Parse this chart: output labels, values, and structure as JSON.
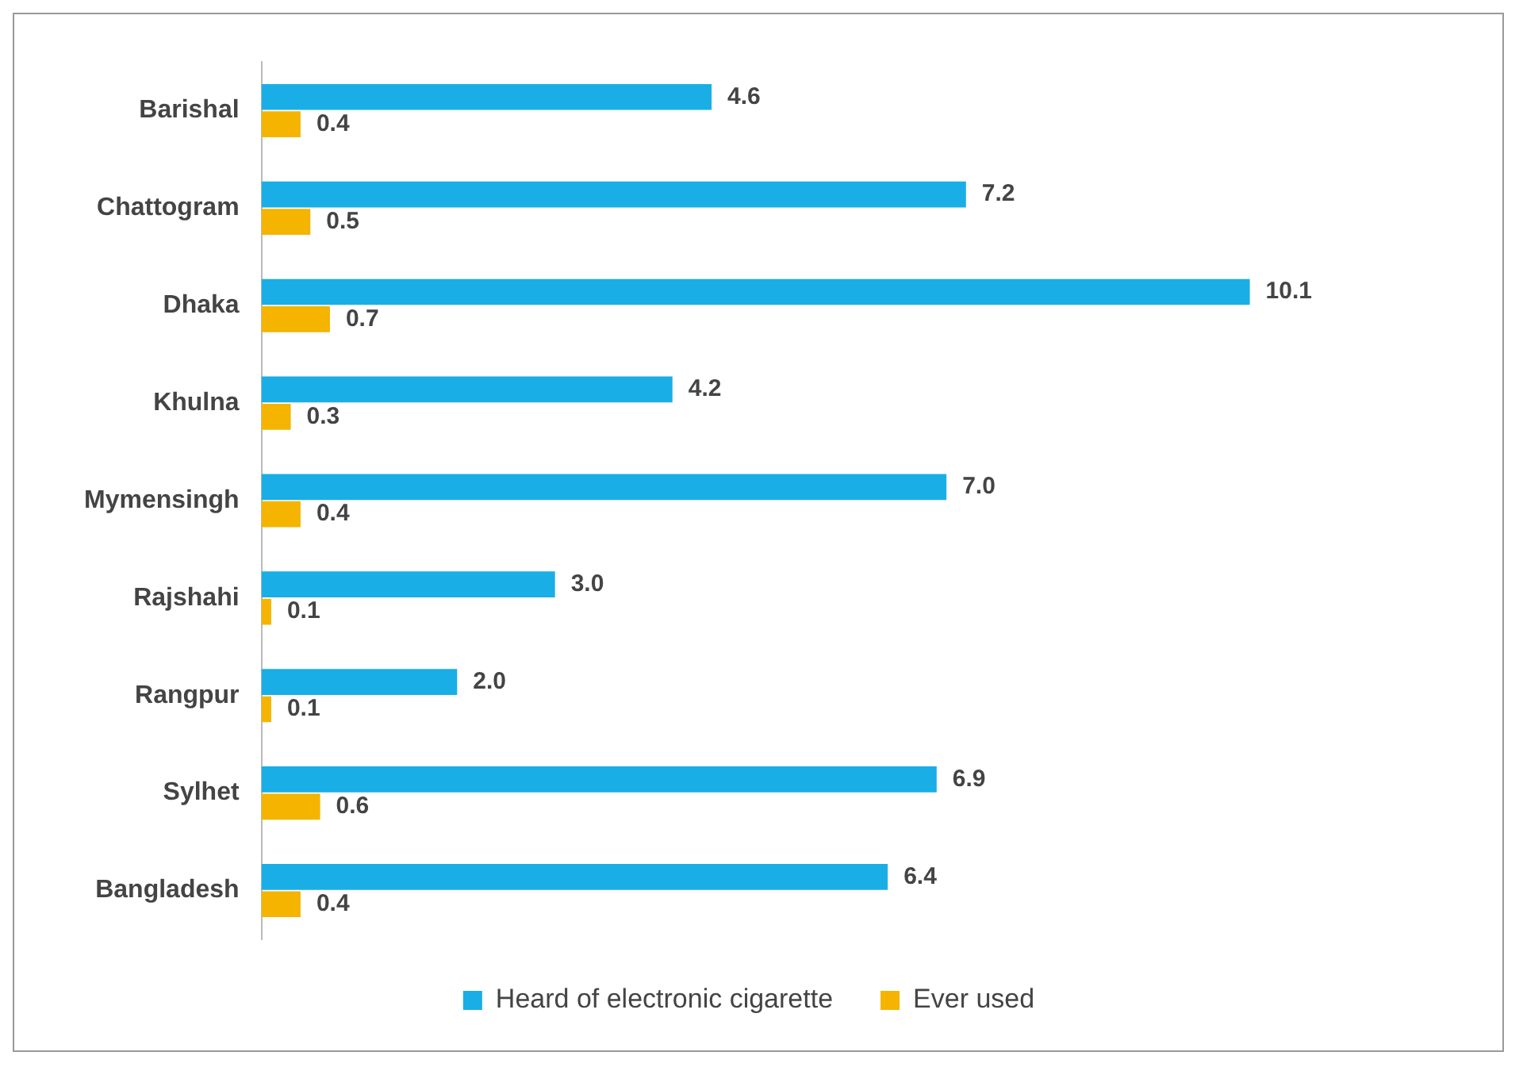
{
  "chart_data": {
    "type": "bar",
    "orientation": "horizontal",
    "categories": [
      "Barishal",
      "Chattogram",
      "Dhaka",
      "Khulna",
      "Mymensingh",
      "Rajshahi",
      "Rangpur",
      "Sylhet",
      "Bangladesh"
    ],
    "series": [
      {
        "name": "Heard of electronic cigarette",
        "color": "#1aaee6",
        "values": [
          4.6,
          7.2,
          10.1,
          4.2,
          7.0,
          3.0,
          2.0,
          6.9,
          6.4
        ],
        "value_labels": [
          "4.6",
          "7.2",
          "10.1",
          "4.2",
          "7.0",
          "3.0",
          "2.0",
          "6.9",
          "6.4"
        ]
      },
      {
        "name": "Ever used",
        "color": "#f4b400",
        "values": [
          0.4,
          0.5,
          0.7,
          0.3,
          0.4,
          0.1,
          0.1,
          0.6,
          0.4
        ],
        "value_labels": [
          "0.4",
          "0.5",
          "0.7",
          "0.3",
          "0.4",
          "0.1",
          "0.1",
          "0.6",
          "0.4"
        ]
      }
    ],
    "legend": "bottom"
  }
}
